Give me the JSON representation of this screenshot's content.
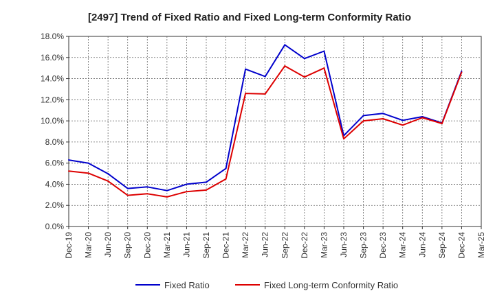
{
  "chart_data": {
    "type": "line",
    "title": "[2497]  Trend of Fixed Ratio and Fixed Long-term Conformity Ratio",
    "xlabel": "",
    "ylabel": "",
    "x": [
      "Dec-19",
      "Mar-20",
      "Jun-20",
      "Sep-20",
      "Dec-20",
      "Mar-21",
      "Jun-21",
      "Sep-21",
      "Dec-21",
      "Mar-22",
      "Jun-22",
      "Sep-22",
      "Dec-22",
      "Mar-23",
      "Jun-23",
      "Sep-23",
      "Dec-23",
      "Mar-24",
      "Jun-24",
      "Sep-24",
      "Dec-24",
      "Mar-25"
    ],
    "yticks": [
      "0.0%",
      "2.0%",
      "4.0%",
      "6.0%",
      "8.0%",
      "10.0%",
      "12.0%",
      "14.0%",
      "16.0%",
      "18.0%"
    ],
    "ylim": [
      0,
      18
    ],
    "grid": true,
    "legend_position": "bottom",
    "series": [
      {
        "name": "Fixed Ratio",
        "color": "#0000cc",
        "values": [
          6.3,
          6.0,
          5.0,
          3.6,
          3.75,
          3.4,
          4.0,
          4.2,
          5.5,
          14.9,
          14.2,
          17.2,
          15.9,
          16.6,
          8.6,
          10.5,
          10.7,
          10.05,
          10.4,
          9.8,
          14.7,
          null
        ]
      },
      {
        "name": "Fixed Long-term Conformity Ratio",
        "color": "#dd0000",
        "values": [
          5.25,
          5.05,
          4.3,
          2.95,
          3.1,
          2.8,
          3.3,
          3.45,
          4.5,
          12.6,
          12.55,
          15.2,
          14.15,
          15.0,
          8.3,
          10.0,
          10.2,
          9.6,
          10.3,
          9.75,
          14.6,
          null
        ]
      }
    ]
  }
}
